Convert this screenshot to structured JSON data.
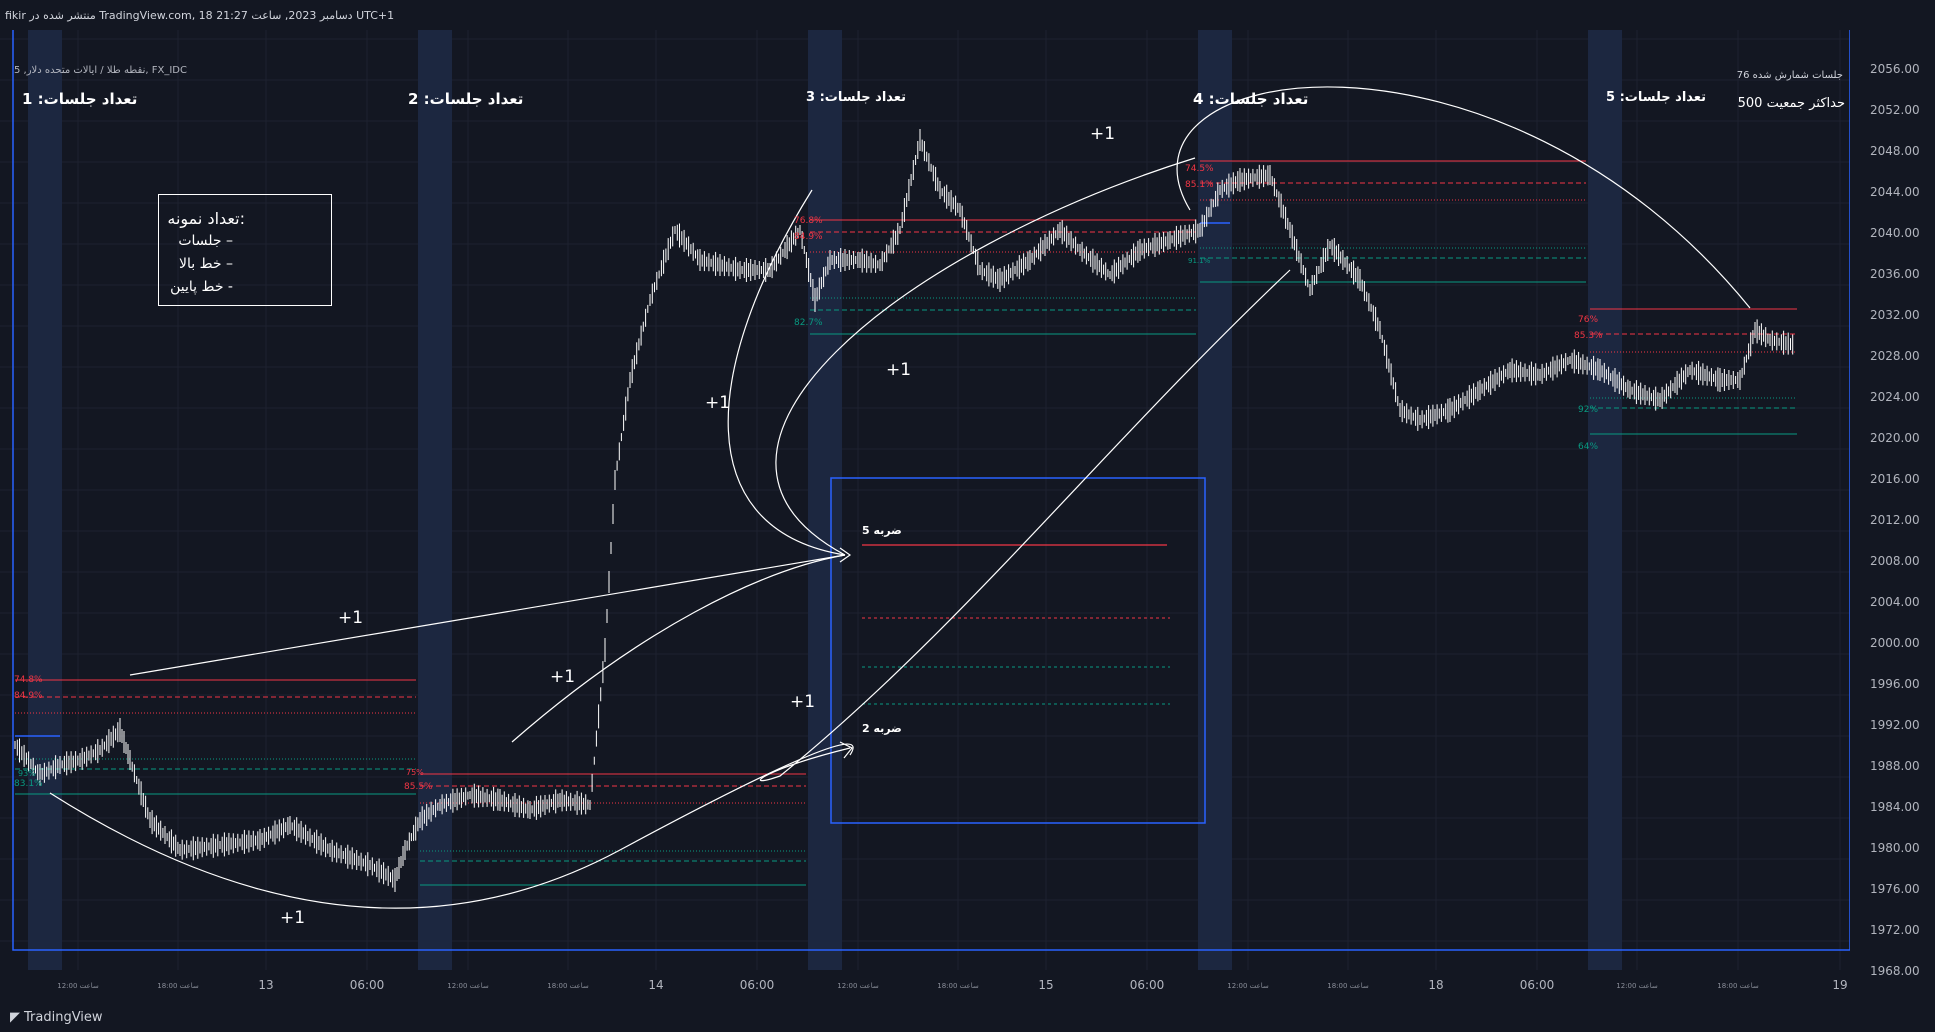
{
  "header": {
    "text": "fikir منتشر شده در TradingView.com, 18 دسامبر 2023, ساعت 21:27 UTC+1"
  },
  "chart": {
    "symbol_label": "نقطه طلا / ایالات متحده دلار, 5, FX_IDC",
    "sessions_counted": "جلسات شمارش شده 76",
    "max_population": "حداکثر جمعیت 500",
    "session_labels": [
      "تعداد جلسات: 1",
      "تعداد جلسات: 2",
      "تعداد جلسات: 3",
      "تعداد جلسات: 4",
      "تعداد جلسات: 5"
    ],
    "legend": {
      "title": "تعداد نمونه:",
      "items": [
        "جلسات –",
        "خط بالا –",
        "خط پایین -"
      ]
    },
    "hit_labels": [
      "5 ضربه",
      "2 ضربه"
    ],
    "plus_label": "+1",
    "level_labels_red": [
      "74.8%",
      "84.9%",
      "75%",
      "85.5%",
      "76.8%",
      "84.9%",
      "74.5%",
      "85.1%",
      "76%",
      "85.3%"
    ],
    "level_labels_green": [
      "83.1%",
      "93%",
      "82.7%",
      "91.1%",
      "92%",
      "64%"
    ],
    "price_ticks": [
      "2056.00",
      "2052.00",
      "2048.00",
      "2044.00",
      "2040.00",
      "2036.00",
      "2032.00",
      "2028.00",
      "2024.00",
      "2020.00",
      "2016.00",
      "2012.00",
      "2008.00",
      "2004.00",
      "2000.00",
      "1996.00",
      "1992.00",
      "1988.00",
      "1984.00",
      "1980.00",
      "1976.00",
      "1972.00",
      "1968.00"
    ],
    "time_ticks": [
      {
        "label": "ساعت 12:00",
        "small": true
      },
      {
        "label": "ساعت 18:00",
        "small": true
      },
      {
        "label": "13",
        "small": false
      },
      {
        "label": "06:00",
        "small": false
      },
      {
        "label": "ساعت 12:00",
        "small": true
      },
      {
        "label": "ساعت 18:00",
        "small": true
      },
      {
        "label": "14",
        "small": false
      },
      {
        "label": "06:00",
        "small": false
      },
      {
        "label": "ساعت 12:00",
        "small": true
      },
      {
        "label": "ساعت 18:00",
        "small": true
      },
      {
        "label": "15",
        "small": false
      },
      {
        "label": "06:00",
        "small": false
      },
      {
        "label": "ساعت 12:00",
        "small": true
      },
      {
        "label": "ساعت 18:00",
        "small": true
      },
      {
        "label": "18",
        "small": false
      },
      {
        "label": "06:00",
        "small": false
      },
      {
        "label": "ساعت 12:00",
        "small": true
      },
      {
        "label": "ساعت 18:00",
        "small": true
      },
      {
        "label": "19",
        "small": false
      }
    ],
    "colors": {
      "background": "#131722",
      "session_band": "#1c2740",
      "frame": "#2962ff",
      "red_level": "#f23645",
      "green_level": "#089981",
      "candle": "#ffffff"
    }
  },
  "footer": {
    "brand": "TradingView",
    "brand_icon": "tradingview-logo-icon"
  }
}
